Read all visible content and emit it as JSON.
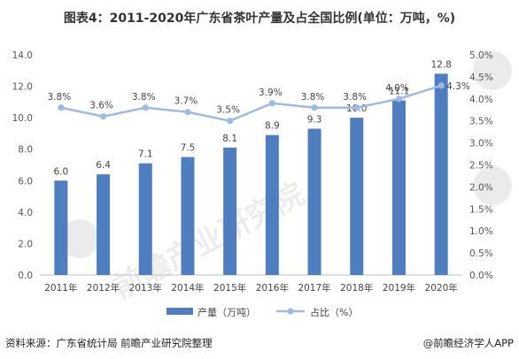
{
  "title": "图表4：2011-2020年广东省茶叶产量及占全国比例(单位：万吨，%)",
  "source": "资料来源：广东省统计局 前瞻产业研究院整理",
  "credit": "@前瞻经济学人APP",
  "watermark": "前瞻产业研究院",
  "colors": {
    "bar": "#4f7ec0",
    "line": "#9db9e6",
    "axis": "#bfbfbf"
  },
  "chart_data": {
    "type": "bar",
    "categories": [
      "2011年",
      "2012年",
      "2013年",
      "2014年",
      "2015年",
      "2016年",
      "2017年",
      "2018年",
      "2019年",
      "2020年"
    ],
    "series": [
      {
        "name": "产量（万吨）",
        "type": "bar",
        "axis": "left",
        "values": [
          6.0,
          6.4,
          7.1,
          7.5,
          8.1,
          8.9,
          9.3,
          10.0,
          11.1,
          12.8
        ],
        "labels": [
          "6.0",
          "6.4",
          "7.1",
          "7.5",
          "8.1",
          "8.9",
          "9.3",
          "10.0",
          "11.1",
          "12.8"
        ]
      },
      {
        "name": "占比（%）",
        "type": "line",
        "axis": "right",
        "values": [
          3.8,
          3.6,
          3.8,
          3.7,
          3.5,
          3.9,
          3.8,
          3.8,
          4.0,
          4.3
        ],
        "labels": [
          "3.8%",
          "3.6%",
          "3.8%",
          "3.7%",
          "3.5%",
          "3.9%",
          "3.8%",
          "3.8%",
          "4.0%",
          "4.3%"
        ]
      }
    ],
    "yleft": {
      "min": 0,
      "max": 14,
      "ticks": [
        "0.0",
        "2.0",
        "4.0",
        "6.0",
        "8.0",
        "10.0",
        "12.0",
        "14.0"
      ]
    },
    "yright": {
      "min": 0,
      "max": 5,
      "ticks": [
        "0.0%",
        "0.5%",
        "1.0%",
        "1.5%",
        "2.0%",
        "2.5%",
        "3.0%",
        "3.5%",
        "4.0%",
        "4.5%",
        "5.0%"
      ]
    },
    "legend_position": "bottom-center",
    "grid": false
  }
}
